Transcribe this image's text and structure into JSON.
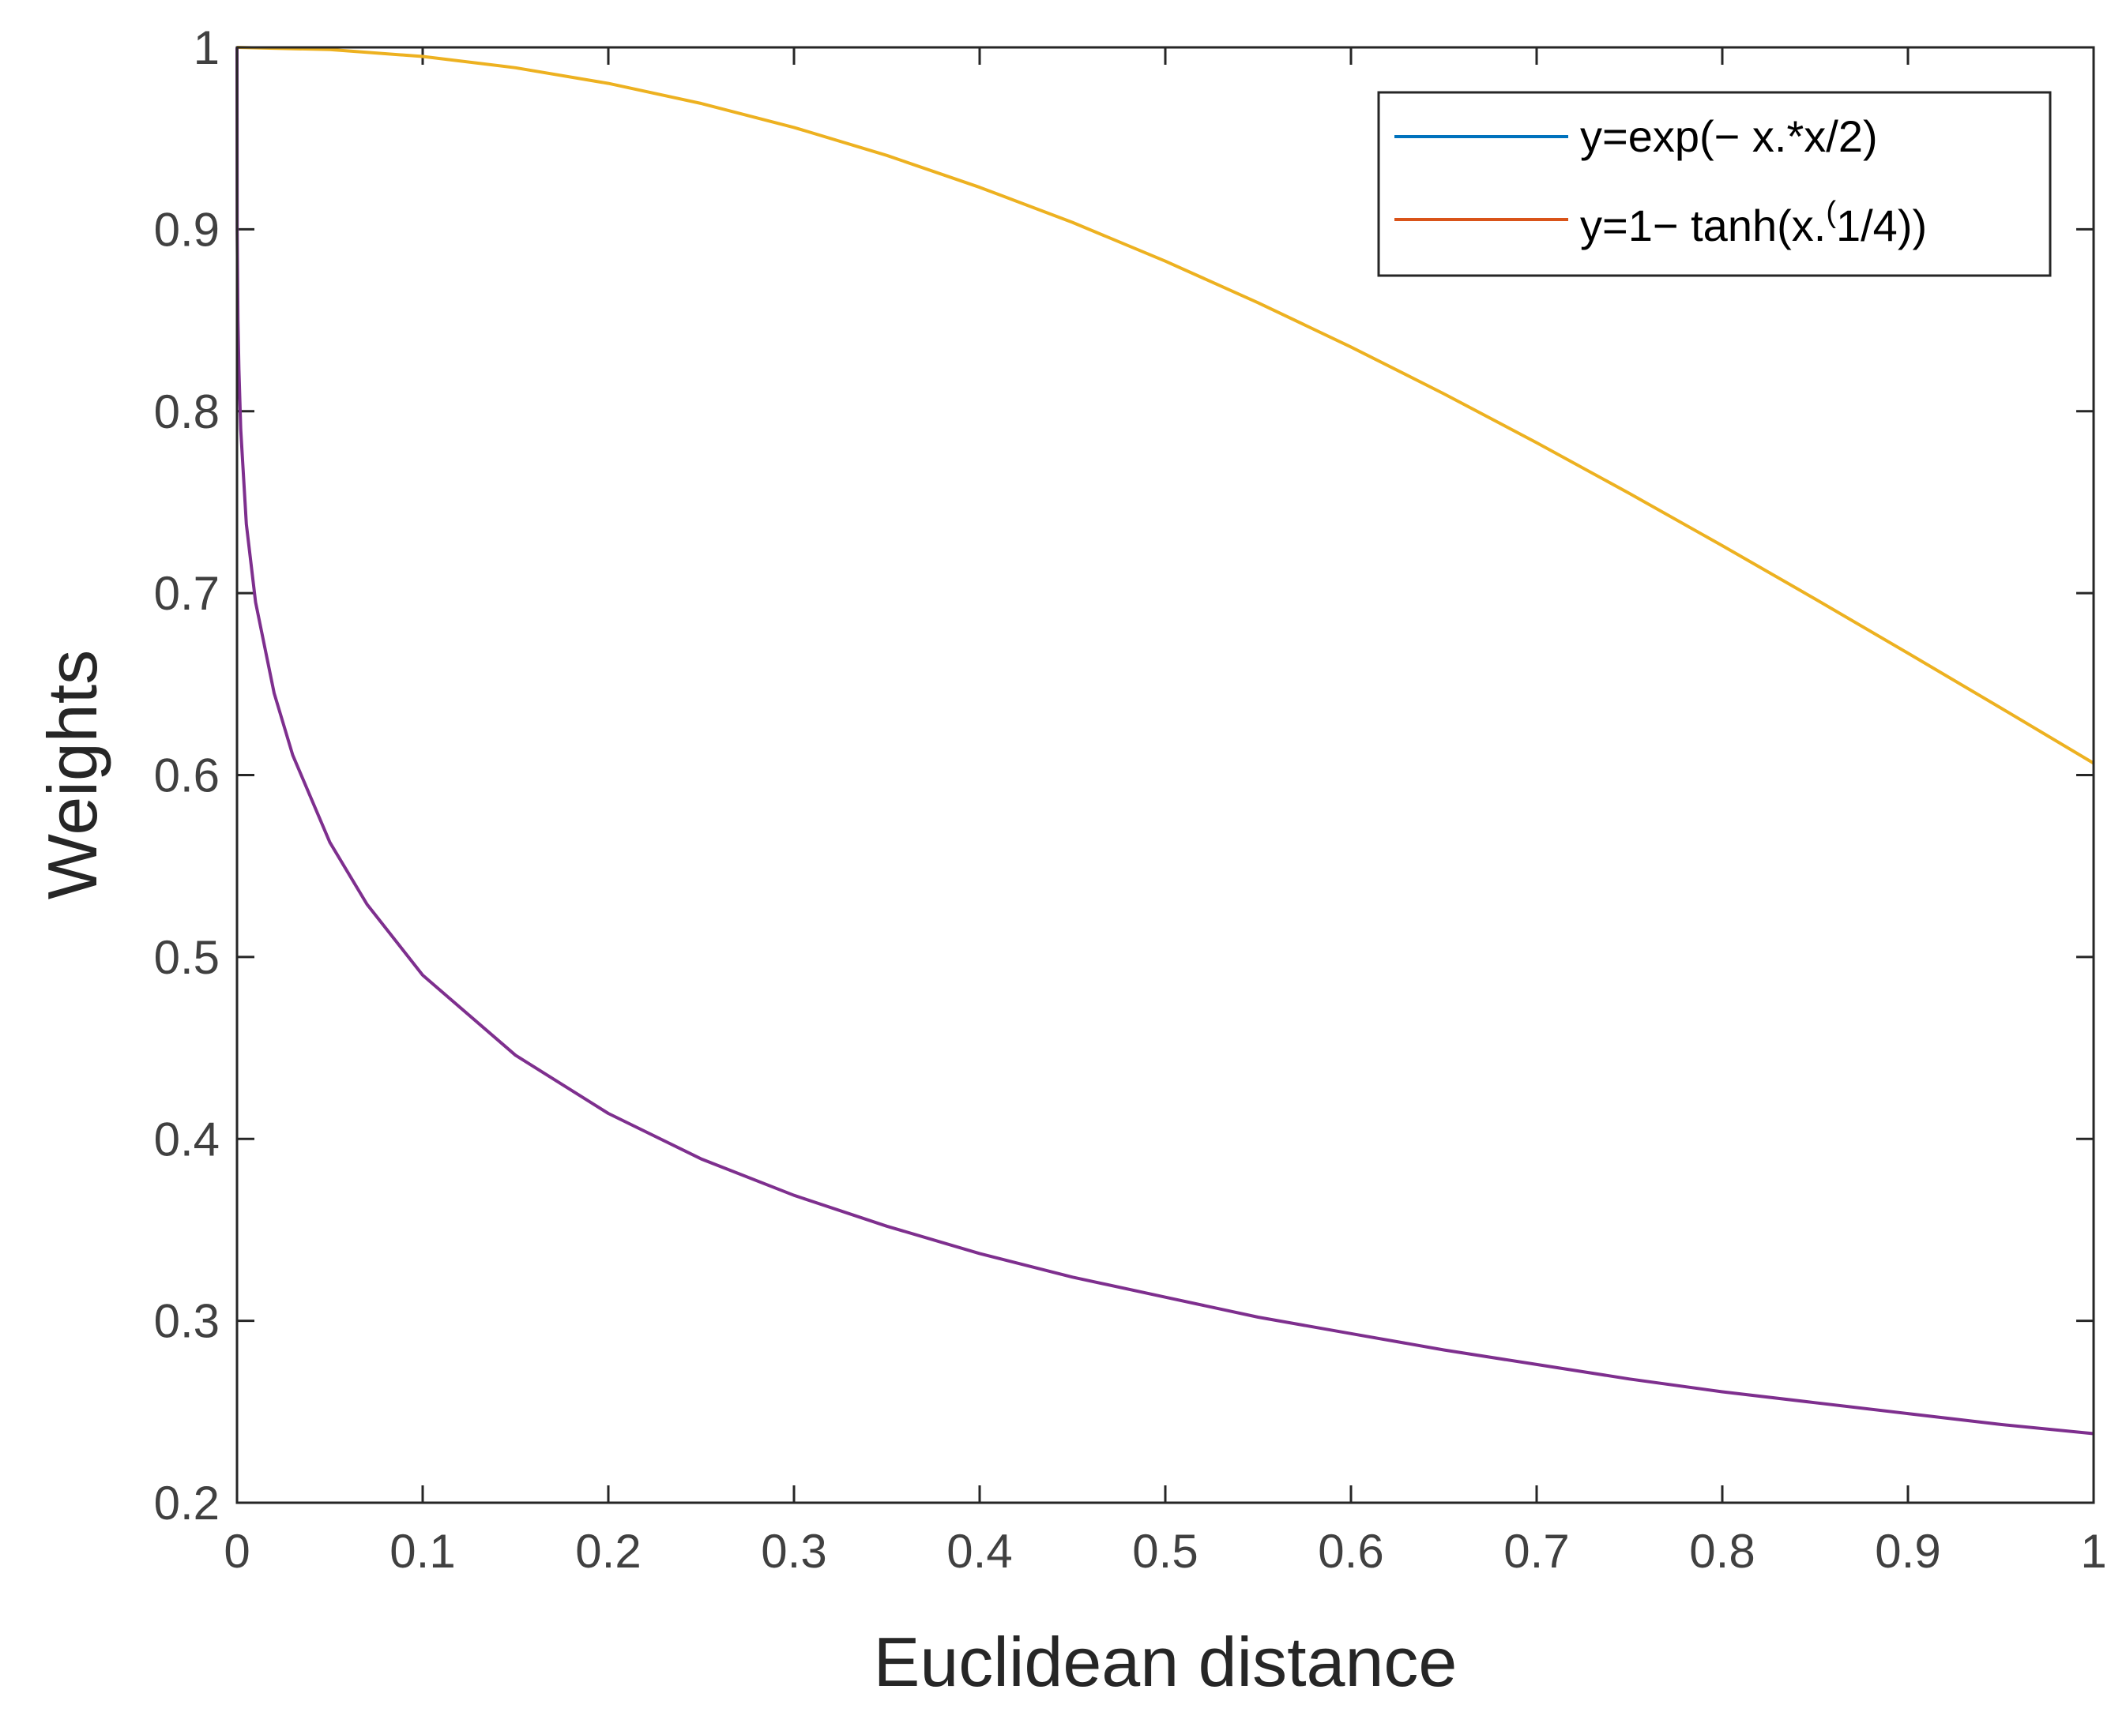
{
  "chart_data": {
    "type": "line",
    "title": "",
    "xlabel": "Euclidean distance",
    "ylabel": "Weights",
    "xlim": [
      0,
      1
    ],
    "ylim": [
      0.2,
      1
    ],
    "xticks": [
      0,
      0.1,
      0.2,
      0.3,
      0.4,
      0.5,
      0.6,
      0.7,
      0.8,
      0.9,
      1
    ],
    "xtick_labels": [
      "0",
      "0.1",
      "0.2",
      "0.3",
      "0.4",
      "0.5",
      "0.6",
      "0.7",
      "0.8",
      "0.9",
      "1"
    ],
    "yticks": [
      0.2,
      0.3,
      0.4,
      0.5,
      0.6,
      0.7,
      0.8,
      0.9,
      1
    ],
    "ytick_labels": [
      "0.2",
      "0.3",
      "0.4",
      "0.5",
      "0.6",
      "0.7",
      "0.8",
      "0.9",
      "1"
    ],
    "grid": false,
    "legend_position": "top-right",
    "series": [
      {
        "name": "y=exp(− x.*x/2)",
        "legend_color": "#0072BD",
        "line_color": "#EDB120",
        "x": [
          0,
          0.05,
          0.1,
          0.15,
          0.2,
          0.25,
          0.3,
          0.35,
          0.4,
          0.45,
          0.5,
          0.55,
          0.6,
          0.65,
          0.7,
          0.75,
          0.8,
          0.85,
          0.9,
          0.95,
          1
        ],
        "y": [
          1.0,
          0.9988,
          0.995,
          0.9888,
          0.9802,
          0.9692,
          0.956,
          0.9406,
          0.9231,
          0.9038,
          0.8825,
          0.8596,
          0.8353,
          0.8096,
          0.7827,
          0.7548,
          0.7261,
          0.6968,
          0.667,
          0.6369,
          0.6065
        ]
      },
      {
        "name": "y=1− tanh(x.",
        "name_superscript": "(",
        "name_suffix": "1/4))",
        "legend_color": "#D95319",
        "line_color": "#7E2F8E",
        "x": [
          0,
          0.0001,
          0.0005,
          0.001,
          0.002,
          0.005,
          0.01,
          0.02,
          0.03,
          0.05,
          0.07,
          0.1,
          0.15,
          0.2,
          0.25,
          0.3,
          0.35,
          0.4,
          0.45,
          0.5,
          0.55,
          0.6,
          0.65,
          0.7,
          0.75,
          0.8,
          0.85,
          0.9,
          0.95,
          1
        ],
        "y": [
          1.0,
          0.9,
          0.85,
          0.823,
          0.79,
          0.738,
          0.695,
          0.645,
          0.611,
          0.563,
          0.529,
          0.49,
          0.446,
          0.414,
          0.389,
          0.369,
          0.352,
          0.337,
          0.324,
          0.313,
          0.302,
          0.293,
          0.284,
          0.276,
          0.268,
          0.261,
          0.255,
          0.249,
          0.243,
          0.238
        ]
      }
    ]
  }
}
